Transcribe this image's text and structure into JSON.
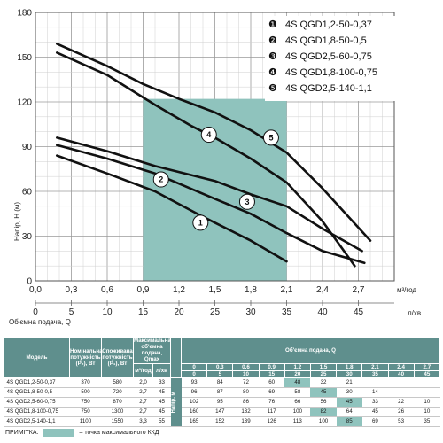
{
  "chart_data": {
    "type": "line",
    "ylabel": "Напір, Н (м)",
    "xlabel_q": "м³/год",
    "xlabel_l": "л/хв",
    "x2_title": "Об'ємна подача, Q",
    "xlim": [
      0,
      3.0
    ],
    "ylim": [
      0,
      180
    ],
    "x_ticks": [
      "0,0",
      "0,3",
      "0,6",
      "0,9",
      "1,2",
      "1,5",
      "1,8",
      "2,1",
      "2,4",
      "2,7"
    ],
    "y_ticks": [
      "0",
      "30",
      "60",
      "90",
      "120",
      "150",
      "180"
    ],
    "l_ticks": [
      "0",
      "5",
      "10",
      "15",
      "20",
      "25",
      "30",
      "35",
      "40",
      "45"
    ],
    "highlight_region": {
      "x": [
        0.9,
        2.1
      ]
    },
    "series": [
      {
        "name": "4S QGD1,2-50-0,37",
        "label": "1",
        "label_at": [
          1.38,
          39
        ],
        "points": [
          [
            0.18,
            84
          ],
          [
            0.6,
            72
          ],
          [
            1.0,
            60
          ],
          [
            1.4,
            43
          ],
          [
            1.8,
            27
          ],
          [
            2.1,
            13
          ]
        ]
      },
      {
        "name": "4S QGD1,8-50-0,5",
        "label": "2",
        "label_at": [
          1.05,
          68
        ],
        "points": [
          [
            0.18,
            91
          ],
          [
            0.6,
            82
          ],
          [
            1.0,
            72
          ],
          [
            1.5,
            55
          ],
          [
            1.8,
            45
          ],
          [
            2.1,
            32
          ],
          [
            2.4,
            20
          ],
          [
            2.75,
            12
          ]
        ]
      },
      {
        "name": "4S QGD2,5-60-0,75",
        "label": "3",
        "label_at": [
          1.77,
          53
        ],
        "points": [
          [
            0.18,
            96
          ],
          [
            0.6,
            87
          ],
          [
            1.0,
            77
          ],
          [
            1.5,
            67
          ],
          [
            1.8,
            58
          ],
          [
            2.1,
            50
          ],
          [
            2.4,
            35
          ],
          [
            2.73,
            20
          ]
        ]
      },
      {
        "name": "4S QGD1,8-100-0,75",
        "label": "4",
        "label_at": [
          1.45,
          98
        ],
        "points": [
          [
            0.18,
            153
          ],
          [
            0.6,
            138
          ],
          [
            1.0,
            118
          ],
          [
            1.3,
            104
          ],
          [
            1.5,
            96
          ],
          [
            1.8,
            82
          ],
          [
            2.1,
            66
          ],
          [
            2.4,
            40
          ],
          [
            2.67,
            10
          ]
        ]
      },
      {
        "name": "4S QGD2,5-140-1,1",
        "label": "5",
        "label_at": [
          1.97,
          96
        ],
        "points": [
          [
            0.18,
            159
          ],
          [
            0.6,
            144
          ],
          [
            0.9,
            132
          ],
          [
            1.2,
            122
          ],
          [
            1.5,
            113
          ],
          [
            1.8,
            101
          ],
          [
            2.1,
            86
          ],
          [
            2.4,
            62
          ],
          [
            2.8,
            27
          ]
        ]
      }
    ],
    "legend": [
      {
        "num": "❶",
        "name": "4S QGD1,2-50-0,37"
      },
      {
        "num": "❷",
        "name": "4S QGD1,8-50-0,5"
      },
      {
        "num": "❸",
        "name": "4S QGD2,5-60-0,75"
      },
      {
        "num": "❹",
        "name": "4S QGD1,8-100-0,75"
      },
      {
        "num": "❺",
        "name": "4S QGD2,5-140-1,1"
      }
    ],
    "colors": {
      "highlight": "#8fc3bd",
      "line": "#111111",
      "table_header": "#5f8f8d"
    }
  },
  "table": {
    "col_model": "Модель",
    "col_power_nom": "Номінальна потужність (P₂), Вт",
    "col_power_cons": "Споживана потужність (P₁), Вт",
    "col_max_flow": "Максимальна об'ємна подача, Qmax",
    "col_flow_title": "Об'ємна подача, Q",
    "unit_m3": "м³/год",
    "unit_l": "л/хв",
    "head_label": "Напір, м",
    "flow_m3": [
      "0",
      "0,3",
      "0,6",
      "0,9",
      "1,2",
      "1,5",
      "1,8",
      "2,1",
      "2,4",
      "2,7"
    ],
    "flow_l": [
      "0",
      "5",
      "10",
      "15",
      "20",
      "25",
      "30",
      "35",
      "40",
      "45"
    ],
    "rows": [
      {
        "model": "4S QGD1,2-50-0,37",
        "p2": "370",
        "p1": "580",
        "qm3": "2,0",
        "ql": "33",
        "h": [
          "93",
          "84",
          "72",
          "60",
          "48",
          "32",
          "21",
          "",
          "",
          ""
        ],
        "hl": 4
      },
      {
        "model": "4S QGD1,8-50-0,5",
        "p2": "500",
        "p1": "720",
        "qm3": "2,7",
        "ql": "45",
        "h": [
          "96",
          "87",
          "80",
          "69",
          "58",
          "45",
          "30",
          "14",
          "",
          ""
        ],
        "hl": 5
      },
      {
        "model": "4S QGD2,5-60-0,75",
        "p2": "750",
        "p1": "870",
        "qm3": "2,7",
        "ql": "45",
        "h": [
          "102",
          "95",
          "86",
          "76",
          "66",
          "56",
          "45",
          "33",
          "22",
          "10"
        ],
        "hl": 6
      },
      {
        "model": "4S QGD1,8-100-0,75",
        "p2": "750",
        "p1": "1300",
        "qm3": "2,7",
        "ql": "45",
        "h": [
          "160",
          "147",
          "132",
          "117",
          "100",
          "82",
          "64",
          "45",
          "26",
          "10"
        ],
        "hl": 5
      },
      {
        "model": "4S QGD2,5-140-1,1",
        "p2": "1100",
        "p1": "1550",
        "qm3": "3,3",
        "ql": "55",
        "h": [
          "165",
          "152",
          "139",
          "126",
          "113",
          "100",
          "85",
          "69",
          "53",
          "35"
        ],
        "hl": 6
      }
    ],
    "note_label": "ПРИМІТКА:",
    "note_text": "– точка максимального ККД"
  }
}
